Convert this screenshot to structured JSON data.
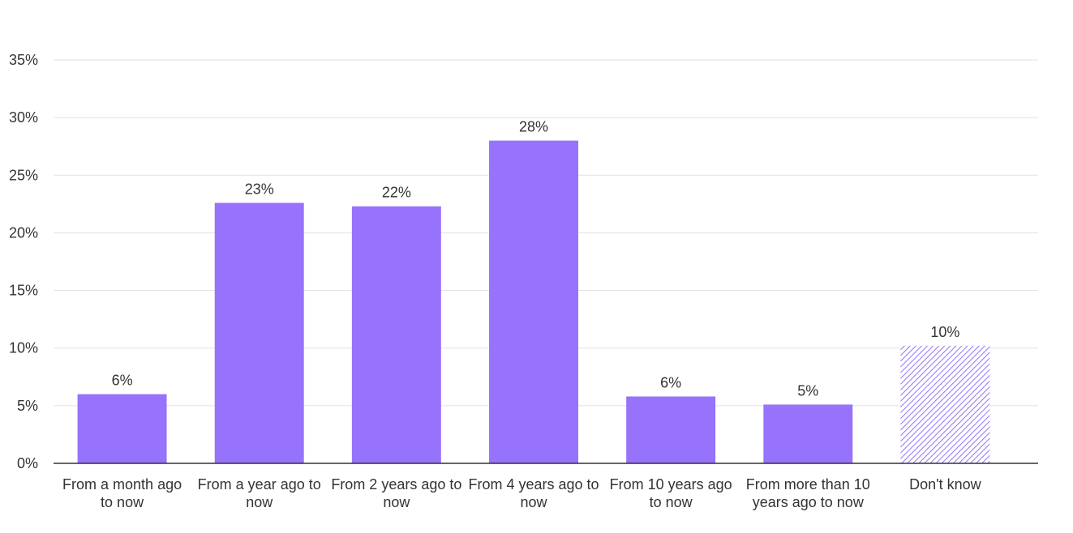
{
  "chart_data": {
    "type": "bar",
    "title": "",
    "xlabel": "",
    "ylabel": "",
    "ylim": [
      0,
      35
    ],
    "y_ticks": [
      0,
      5,
      10,
      15,
      20,
      25,
      30,
      35
    ],
    "y_tick_labels": [
      "0%",
      "5%",
      "10%",
      "15%",
      "20%",
      "25%",
      "30%",
      "35%"
    ],
    "grid": true,
    "categories": [
      [
        "From a month ago",
        "to now"
      ],
      [
        "From a year ago to",
        "now"
      ],
      [
        "From 2 years ago to",
        "now"
      ],
      [
        "From 4 years ago to",
        "now"
      ],
      [
        "From 10 years ago",
        "to now"
      ],
      [
        "From more than 10",
        "years ago to now"
      ],
      [
        "Don't know"
      ]
    ],
    "values": [
      6,
      22.6,
      22.3,
      28,
      5.8,
      5.1,
      10.2
    ],
    "data_labels": [
      "6%",
      "23%",
      "22%",
      "28%",
      "6%",
      "5%",
      "10%"
    ],
    "hatched": [
      false,
      false,
      false,
      false,
      false,
      false,
      true
    ],
    "colors": {
      "bar": "#9673fa",
      "hatch": "#9673fa"
    }
  }
}
